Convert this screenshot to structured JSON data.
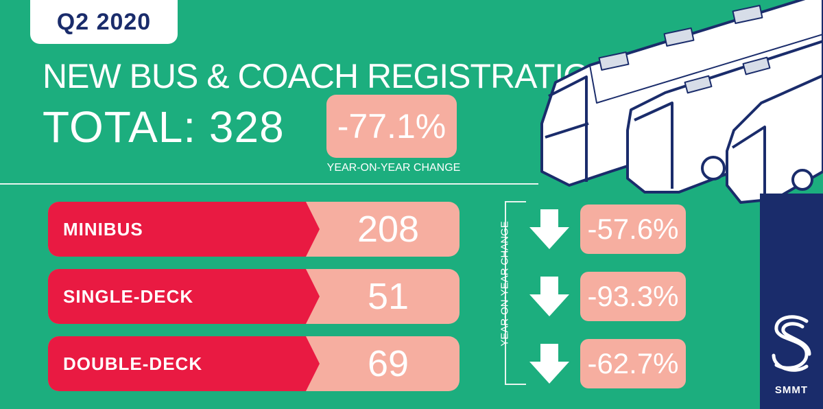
{
  "header": {
    "quarter": "Q2 2020",
    "title": "NEW BUS & COACH REGISTRATIONS",
    "total": "TOTAL: 328",
    "total_change": "-77.1%",
    "total_change_label": "YEAR-ON-YEAR CHANGE"
  },
  "rows": [
    {
      "label": "MINIBUS",
      "value": "208",
      "change": "-57.6%"
    },
    {
      "label": "SINGLE-DECK",
      "value": "51",
      "change": "-93.3%"
    },
    {
      "label": "DOUBLE-DECK",
      "value": "69",
      "change": "-62.7%"
    }
  ],
  "yoy_vertical_label": "YEAR-ON-YEAR CHANGE",
  "brand": {
    "name": "SMMT"
  },
  "colors": {
    "background": "#1cae7e",
    "label_red": "#e91a42",
    "value_pink": "#f6aea0",
    "navy": "#1a2c6b"
  },
  "icons": [
    "down-arrow-icon",
    "smmt-logo-icon",
    "bus-illustration"
  ]
}
